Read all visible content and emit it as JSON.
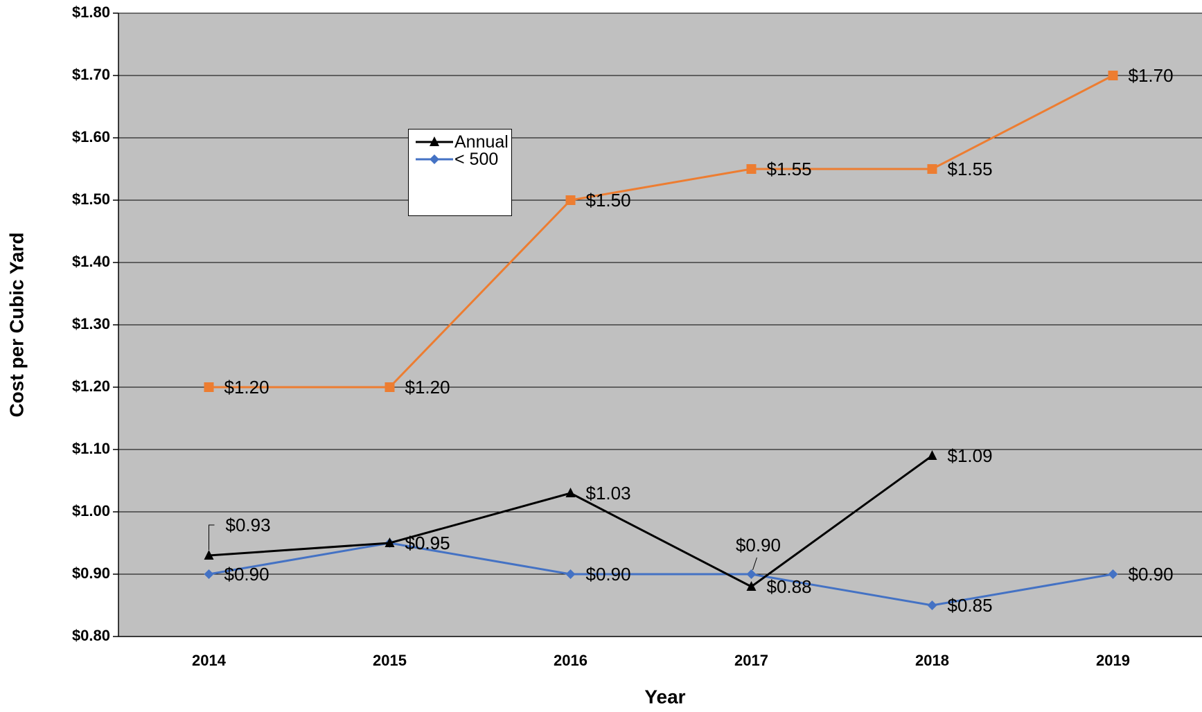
{
  "chart_data": {
    "type": "line",
    "x_label": "Year",
    "y_label": "Cost per Cubic Yard",
    "categories": [
      "2014",
      "2015",
      "2016",
      "2017",
      "2018",
      "2019"
    ],
    "ylim": [
      0.8,
      1.8
    ],
    "yticks": [
      {
        "value": 0.8,
        "label": "$0.80"
      },
      {
        "value": 0.9,
        "label": "$0.90"
      },
      {
        "value": 1.0,
        "label": "$1.00"
      },
      {
        "value": 1.1,
        "label": "$1.10"
      },
      {
        "value": 1.2,
        "label": "$1.20"
      },
      {
        "value": 1.3,
        "label": "$1.30"
      },
      {
        "value": 1.4,
        "label": "$1.40"
      },
      {
        "value": 1.5,
        "label": "$1.50"
      },
      {
        "value": 1.6,
        "label": "$1.60"
      },
      {
        "value": 1.7,
        "label": "$1.70"
      },
      {
        "value": 1.8,
        "label": "$1.80"
      }
    ],
    "grid": true,
    "series": [
      {
        "name": "Annual",
        "color": "#000000",
        "marker": "triangle",
        "values": [
          0.93,
          0.95,
          1.03,
          0.88,
          1.09,
          null
        ],
        "value_labels": [
          "$0.93",
          "$0.95",
          "$1.03",
          "$0.88",
          "$1.09",
          null
        ]
      },
      {
        "name": "< 500",
        "color": "#4472c4",
        "marker": "diamond",
        "values": [
          0.9,
          0.95,
          0.9,
          0.9,
          0.85,
          0.9
        ],
        "value_labels": [
          "$0.90",
          "$0.95",
          "$0.90",
          "$0.90",
          "$0.85",
          "$0.90"
        ]
      },
      {
        "color": "#ed7d31",
        "marker": "square",
        "values": [
          1.2,
          1.2,
          1.5,
          1.55,
          1.55,
          1.7
        ],
        "value_labels": [
          "$1.20",
          "$1.20",
          "$1.50",
          "$1.55",
          "$1.55",
          "$1.70"
        ]
      }
    ]
  }
}
